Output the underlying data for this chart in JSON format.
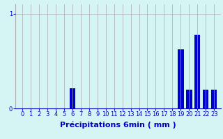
{
  "xlabel": "Précipitations 6min ( mm )",
  "background_color": "#d5f5f5",
  "bar_color": "#0000cc",
  "grid_color": "#aaaaaa",
  "axis_label_color": "#0000cc",
  "tick_color": "#0000cc",
  "ylim": [
    0,
    1.1
  ],
  "yticks": [
    0,
    1
  ],
  "categories": [
    0,
    1,
    2,
    3,
    4,
    5,
    6,
    7,
    8,
    9,
    10,
    11,
    12,
    13,
    14,
    15,
    16,
    17,
    18,
    19,
    20,
    21,
    22,
    23
  ],
  "values": [
    0,
    0,
    0,
    0,
    0,
    0,
    0.21,
    0,
    0,
    0,
    0,
    0,
    0,
    0,
    0,
    0,
    0,
    0,
    0,
    0.62,
    0.2,
    0.78,
    0.2,
    0.2
  ],
  "bar_width": 0.7,
  "figsize": [
    3.2,
    2.0
  ],
  "dpi": 100,
  "xlabel_fontsize": 8,
  "tick_fontsize": 6
}
